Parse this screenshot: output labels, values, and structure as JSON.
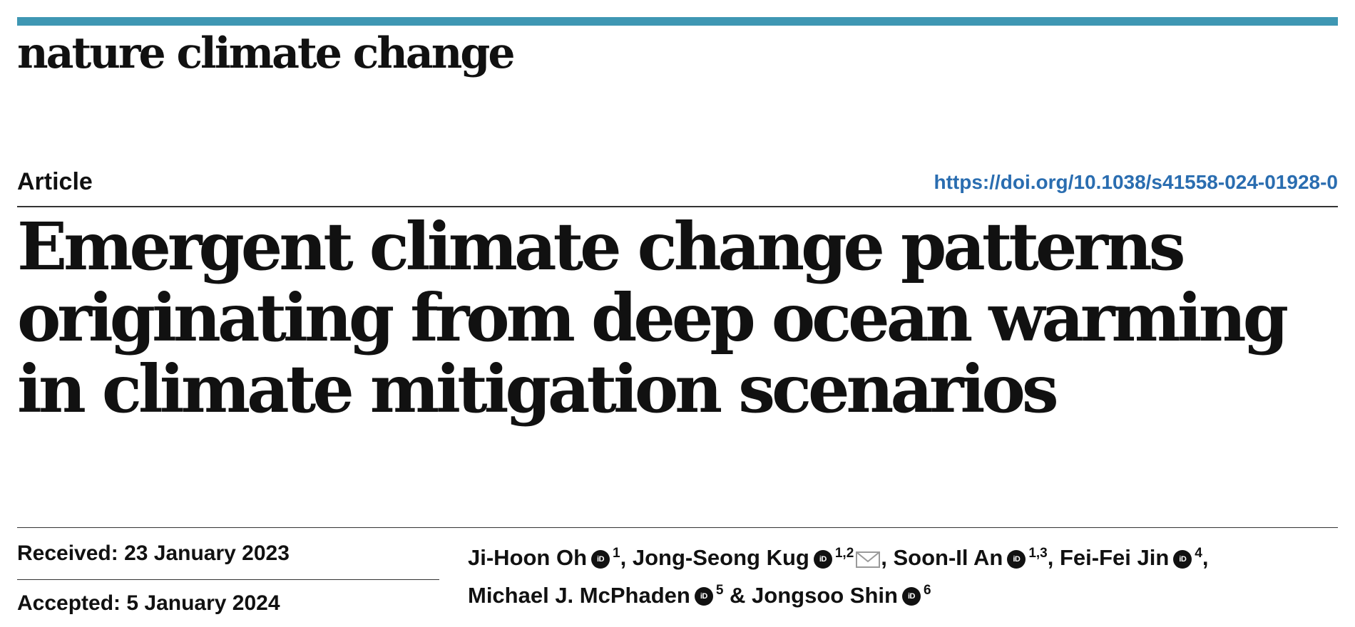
{
  "journal": {
    "name": "nature climate change",
    "accent_color": "#3e97b3"
  },
  "article": {
    "type": "Article",
    "doi_url": "https://doi.org/10.1038/s41558-024-01928-0",
    "title": "Emergent climate change patterns originating from deep ocean warming in climate mitigation scenarios"
  },
  "dates": {
    "received": "Received: 23 January 2023",
    "accepted": "Accepted: 5 January 2024"
  },
  "authors": [
    {
      "name": "Ji-Hoon Oh",
      "affil": "1",
      "sep": ", "
    },
    {
      "name": "Jong-Seong Kug",
      "affil": "1,2",
      "corresponding": true,
      "sep": ", "
    },
    {
      "name": "Soon-Il An",
      "affil": "1,3",
      "sep": ", "
    },
    {
      "name": "Fei-Fei Jin",
      "affil": "4",
      "sep": ", "
    },
    {
      "name": "Michael J. McPhaden",
      "affil": "5",
      "sep": " & "
    },
    {
      "name": "Jongsoo Shin",
      "affil": "6",
      "sep": ""
    }
  ],
  "icons": {
    "orcid": "orcid-icon",
    "email": "envelope-icon"
  },
  "orcid_label": "iD"
}
